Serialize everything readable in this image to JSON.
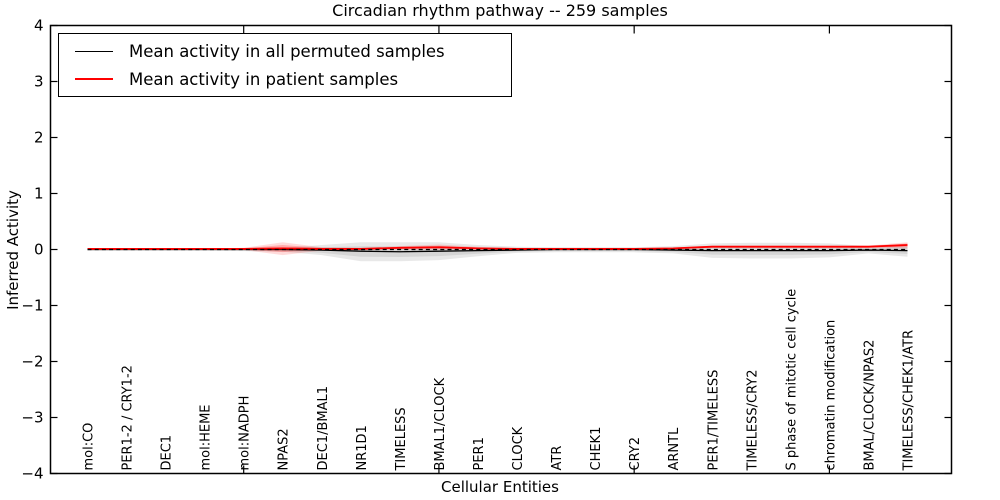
{
  "figure": {
    "title": "Circadian rhythm pathway -- 259 samples",
    "xlabel": "Cellular Entities",
    "ylabel": "Inferred Activity"
  },
  "legend": {
    "items": [
      {
        "label": "Mean activity in all permuted samples",
        "color": "#000000"
      },
      {
        "label": "Mean activity in patient samples",
        "color": "#ff0000"
      }
    ]
  },
  "chart_data": {
    "type": "line",
    "title": "Circadian rhythm pathway -- 259 samples",
    "xlabel": "Cellular Entities",
    "ylabel": "Inferred Activity",
    "ylim": [
      -4,
      4
    ],
    "yticks": [
      -4,
      -3,
      -2,
      -1,
      0,
      1,
      2,
      3,
      4
    ],
    "ytick_labels": [
      "−4",
      "−3",
      "−2",
      "−1",
      "0",
      "1",
      "2",
      "3",
      "4"
    ],
    "xtick_major_indices": [
      4,
      9,
      14,
      19
    ],
    "grid": false,
    "legend_position": "upper left",
    "categories": [
      "mol:CO",
      "PER1-2 / CRY1-2",
      "DEC1",
      "mol:HEME",
      "mol:NADPH",
      "NPAS2",
      "DEC1/BMAL1",
      "NR1D1",
      "TIMELESS",
      "BMAL1/CLOCK",
      "PER1",
      "CLOCK",
      "ATR",
      "CHEK1",
      "CRY2",
      "ARNTL",
      "PER1/TIMELESS",
      "TIMELESS/CRY2",
      "S phase of mitotic cell cycle",
      "chromatin modification",
      "BMAL/CLOCK/NPAS2",
      "TIMELESS/CHEK1/ATR"
    ],
    "series": [
      {
        "name": "Mean activity in all permuted samples",
        "color": "#000000",
        "line_width": 1.3,
        "values": [
          0,
          0,
          0,
          0,
          0,
          0,
          -0.01,
          -0.03,
          -0.04,
          -0.03,
          -0.02,
          -0.01,
          0,
          0,
          0,
          -0.01,
          -0.02,
          -0.02,
          -0.02,
          -0.02,
          -0.01,
          -0.02
        ],
        "band_upper": [
          0.02,
          0.02,
          0.02,
          0.02,
          0.03,
          0.03,
          0.08,
          0.13,
          0.13,
          0.13,
          0.08,
          0.05,
          0.04,
          0.04,
          0.04,
          0.06,
          0.11,
          0.12,
          0.12,
          0.11,
          0.06,
          0.1
        ],
        "band_lower": [
          -0.02,
          -0.02,
          -0.02,
          -0.02,
          -0.03,
          -0.04,
          -0.1,
          -0.21,
          -0.21,
          -0.19,
          -0.12,
          -0.06,
          -0.05,
          -0.05,
          -0.05,
          -0.07,
          -0.15,
          -0.16,
          -0.16,
          -0.14,
          -0.07,
          -0.13
        ],
        "band_color": "rgba(0,0,0,0.09)",
        "band_inner_color": "rgba(0,0,0,0.08)"
      },
      {
        "name": "Mean activity in patient samples",
        "color": "#ff0000",
        "line_width": 1.8,
        "values": [
          0.01,
          0.01,
          0.01,
          0.01,
          0.01,
          0.02,
          0.01,
          0.01,
          0.03,
          0.04,
          0.02,
          0.01,
          0.01,
          0.01,
          0.01,
          0.02,
          0.05,
          0.05,
          0.05,
          0.05,
          0.05,
          0.08
        ],
        "band_upper": [
          0.02,
          0.02,
          0.02,
          0.02,
          0.03,
          0.13,
          0.04,
          0.03,
          0.06,
          0.09,
          0.05,
          0.02,
          0.02,
          0.02,
          0.02,
          0.03,
          0.07,
          0.07,
          0.07,
          0.07,
          0.07,
          0.13
        ],
        "band_lower": [
          0.0,
          0.0,
          0.0,
          0.0,
          -0.01,
          -0.1,
          -0.02,
          -0.01,
          0.0,
          0.0,
          -0.01,
          0.0,
          0.0,
          0.0,
          0.0,
          0.01,
          0.03,
          0.03,
          0.03,
          0.03,
          0.03,
          0.02
        ],
        "band_color": "rgba(255,0,0,0.14)",
        "band_inner_color": "rgba(255,0,0,0.22)"
      }
    ],
    "zero_line": {
      "y": 0,
      "style": "dashed",
      "color": "#000000"
    }
  }
}
